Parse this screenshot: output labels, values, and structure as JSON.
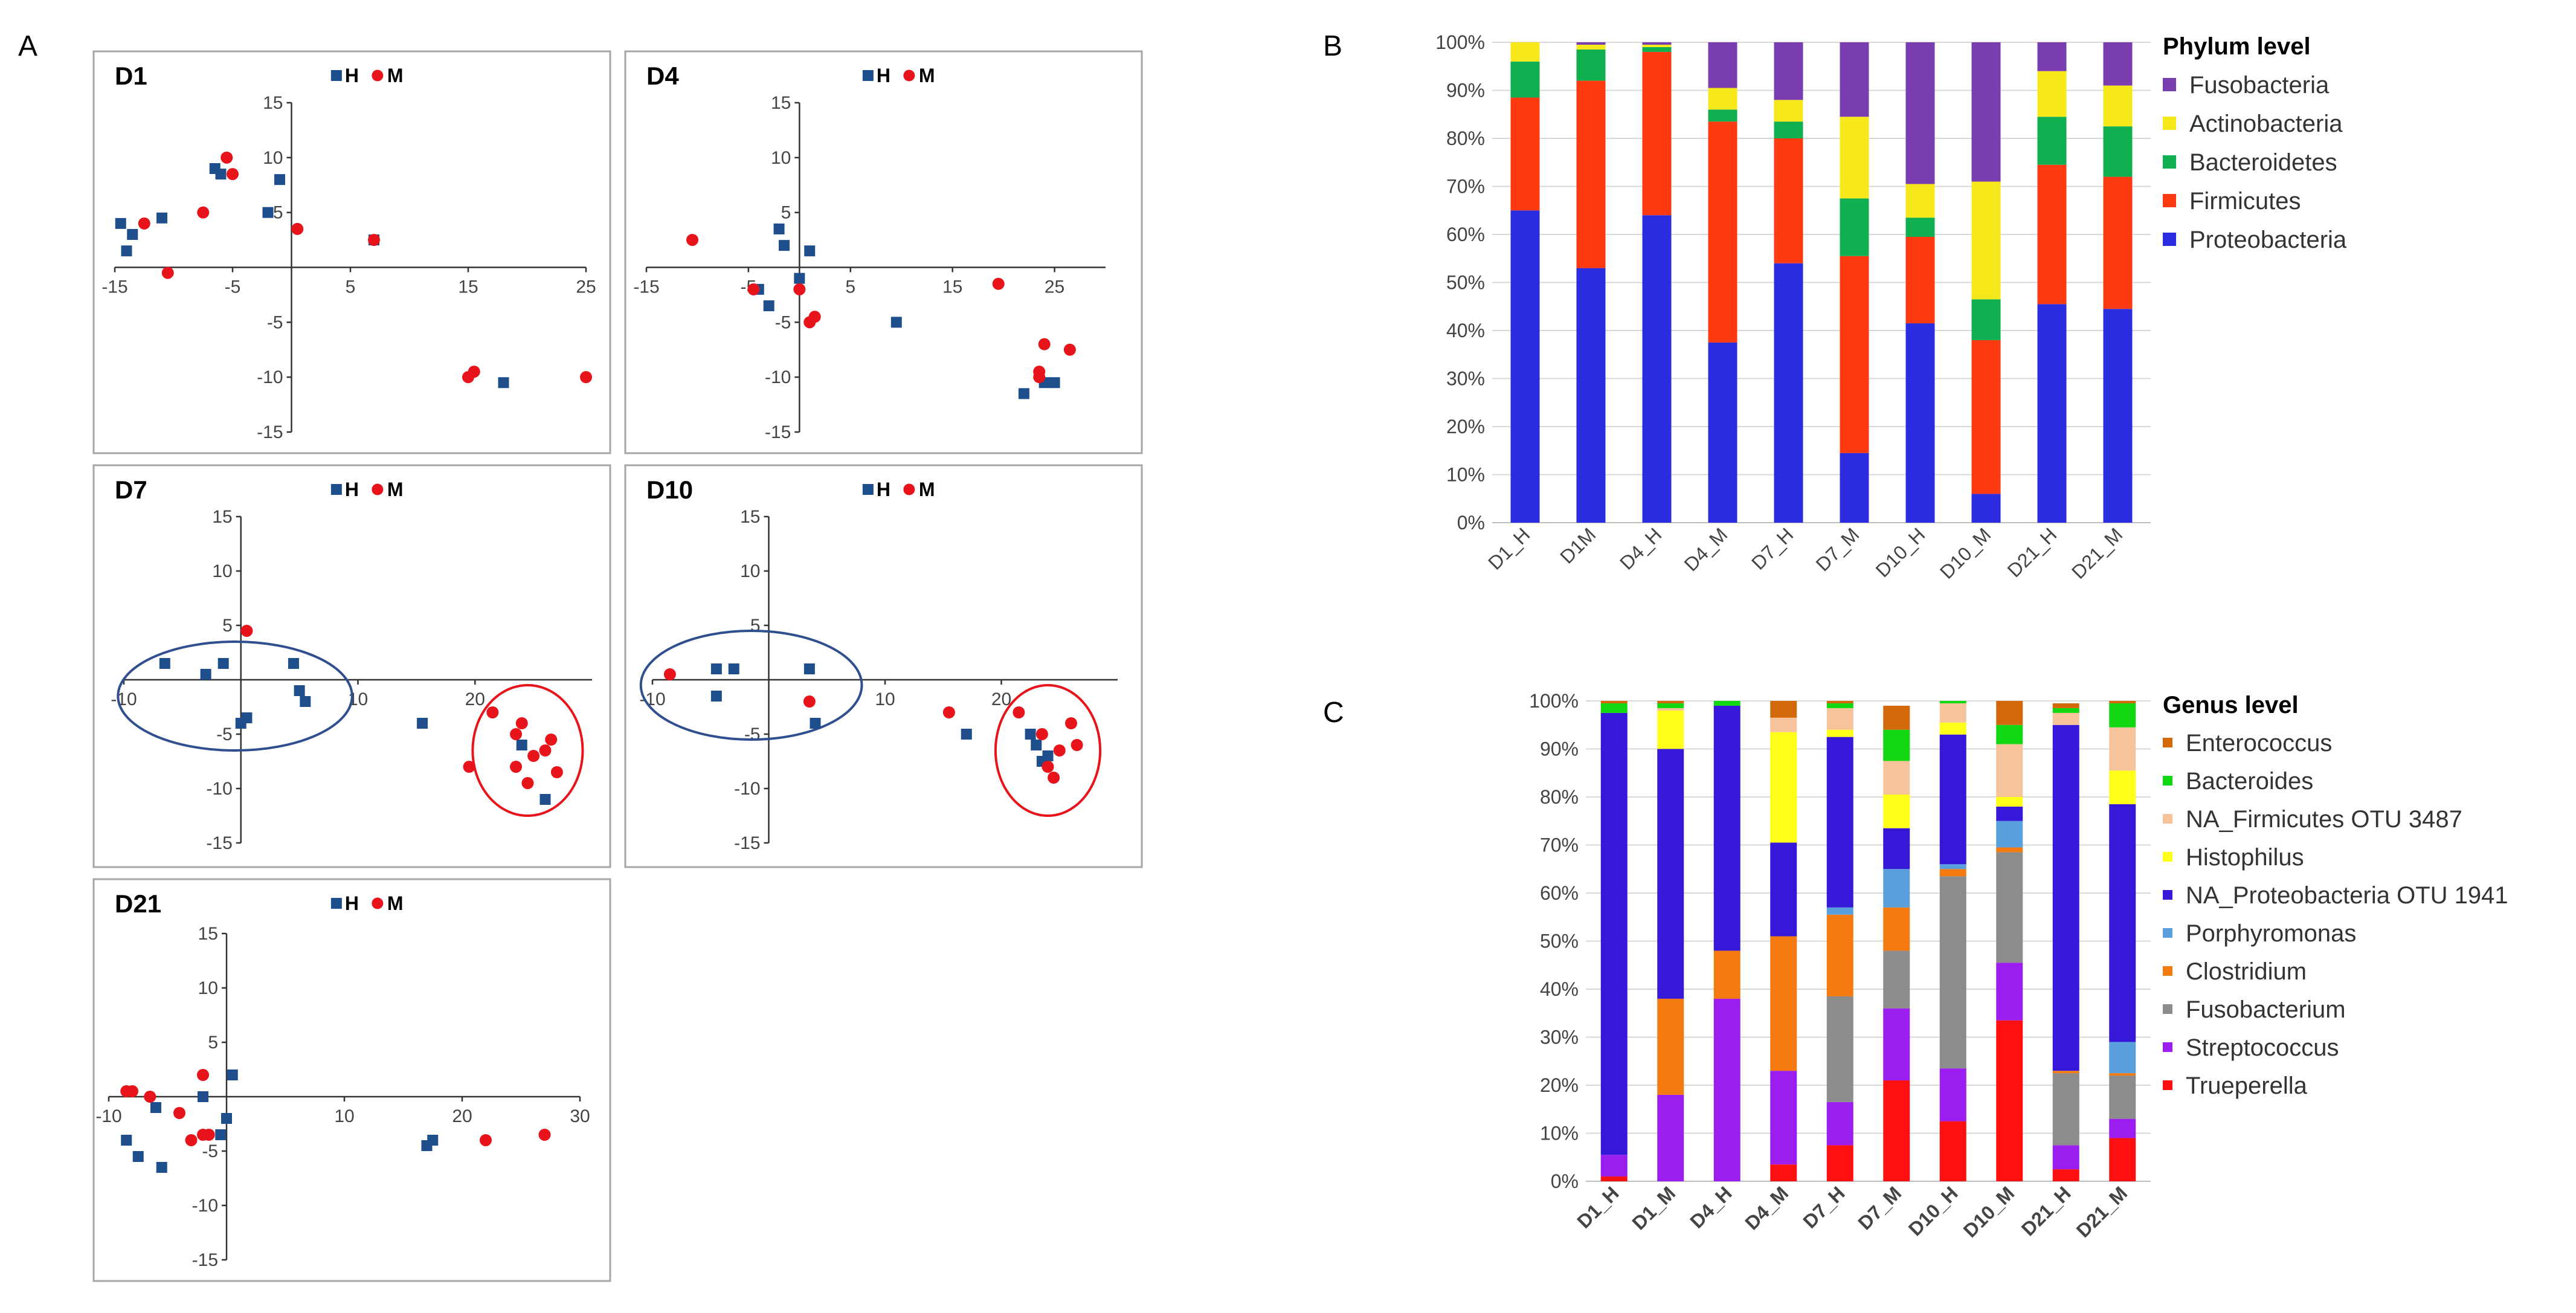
{
  "panel_labels": {
    "a": "A",
    "b": "B",
    "c": "C"
  },
  "colors": {
    "H": "#1f4e8c",
    "M": "#e8141b"
  },
  "chart_data": [
    {
      "type": "scatter",
      "id": "D1",
      "title": "D1",
      "legend": [
        "H",
        "M"
      ],
      "xlim": [
        -15,
        25
      ],
      "ylim": [
        -15,
        15
      ],
      "xticks": [
        -15,
        -5,
        5,
        15,
        25
      ],
      "yticks": [
        -15,
        -10,
        -5,
        5,
        10,
        15
      ],
      "series": [
        {
          "name": "H",
          "points": [
            [
              -14.5,
              4
            ],
            [
              -14,
              1.5
            ],
            [
              -13.5,
              3
            ],
            [
              -11,
              4.5
            ],
            [
              -6.5,
              9
            ],
            [
              -6,
              8.5
            ],
            [
              -2,
              5
            ],
            [
              -1,
              8
            ],
            [
              7,
              2.5
            ],
            [
              18,
              -10.5
            ]
          ]
        },
        {
          "name": "M",
          "points": [
            [
              -12.5,
              4
            ],
            [
              -10.5,
              -0.5
            ],
            [
              -7.5,
              5
            ],
            [
              -5.5,
              10
            ],
            [
              -5,
              8.5
            ],
            [
              0.5,
              3.5
            ],
            [
              7,
              2.5
            ],
            [
              15,
              -10
            ],
            [
              15.5,
              -9.5
            ],
            [
              25,
              -10
            ]
          ]
        }
      ],
      "ellipses": []
    },
    {
      "type": "scatter",
      "id": "D4",
      "title": "D4",
      "legend": [
        "H",
        "M"
      ],
      "xlim": [
        -15,
        30
      ],
      "ylim": [
        -15,
        15
      ],
      "xticks": [
        -15,
        -5,
        5,
        15,
        25
      ],
      "yticks": [
        -15,
        -10,
        -5,
        5,
        10,
        15
      ],
      "series": [
        {
          "name": "H",
          "points": [
            [
              -4,
              -2
            ],
            [
              -3,
              -3.5
            ],
            [
              -2,
              3.5
            ],
            [
              -1.5,
              2
            ],
            [
              0,
              -1
            ],
            [
              1,
              1.5
            ],
            [
              9.5,
              -5
            ],
            [
              22,
              -11.5
            ],
            [
              24,
              -10.5
            ],
            [
              25,
              -10.5
            ]
          ]
        },
        {
          "name": "M",
          "points": [
            [
              -10.5,
              2.5
            ],
            [
              -4.5,
              -2
            ],
            [
              0,
              -2
            ],
            [
              1,
              -5
            ],
            [
              1.5,
              -4.5
            ],
            [
              19.5,
              -1.5
            ],
            [
              23.5,
              -10
            ],
            [
              23.5,
              -9.5
            ],
            [
              24,
              -7
            ],
            [
              26.5,
              -7.5
            ]
          ]
        }
      ],
      "ellipses": []
    },
    {
      "type": "scatter",
      "id": "D7",
      "title": "D7",
      "legend": [
        "H",
        "M"
      ],
      "xlim": [
        -10,
        30
      ],
      "ylim": [
        -15,
        15
      ],
      "xticks": [
        -10,
        10,
        20
      ],
      "yticks": [
        -15,
        -10,
        -5,
        5,
        10,
        15
      ],
      "series": [
        {
          "name": "H",
          "points": [
            [
              -6.5,
              1.5
            ],
            [
              -3,
              0.5
            ],
            [
              -1.5,
              1.5
            ],
            [
              0,
              -4
            ],
            [
              0.5,
              -3.5
            ],
            [
              4.5,
              1.5
            ],
            [
              5,
              -1
            ],
            [
              5.5,
              -2
            ],
            [
              15.5,
              -4
            ],
            [
              24,
              -6
            ],
            [
              26,
              -11
            ]
          ]
        },
        {
          "name": "M",
          "points": [
            [
              0.5,
              4.5
            ],
            [
              19.5,
              -8
            ],
            [
              21.5,
              -3
            ],
            [
              23.5,
              -5
            ],
            [
              23.5,
              -8
            ],
            [
              24,
              -4
            ],
            [
              24.5,
              -9.5
            ],
            [
              25,
              -7
            ],
            [
              26,
              -6.5
            ],
            [
              26.5,
              -5.5
            ],
            [
              27,
              -8.5
            ]
          ]
        }
      ],
      "ellipses": [
        {
          "cx": -0.5,
          "cy": -1.5,
          "rx": 10,
          "ry": 5,
          "color": "#2f4f8f"
        },
        {
          "cx": 24.5,
          "cy": -6.5,
          "rx": 4.7,
          "ry": 6,
          "color": "#e8141b"
        }
      ]
    },
    {
      "type": "scatter",
      "id": "D10",
      "title": "D10",
      "legend": [
        "H",
        "M"
      ],
      "xlim": [
        -10,
        30
      ],
      "ylim": [
        -15,
        15
      ],
      "xticks": [
        -10,
        10,
        20
      ],
      "yticks": [
        -15,
        -10,
        -5,
        5,
        10,
        15
      ],
      "series": [
        {
          "name": "H",
          "points": [
            [
              -4.5,
              -1.5
            ],
            [
              -4.5,
              1
            ],
            [
              -3,
              1
            ],
            [
              3.5,
              1
            ],
            [
              4,
              -4
            ],
            [
              17,
              -5
            ],
            [
              22.5,
              -5
            ],
            [
              23,
              -6
            ],
            [
              23.5,
              -7.5
            ],
            [
              24,
              -7
            ]
          ]
        },
        {
          "name": "M",
          "points": [
            [
              -8.5,
              0.5
            ],
            [
              3.5,
              -2
            ],
            [
              15.5,
              -3
            ],
            [
              21.5,
              -3
            ],
            [
              23.5,
              -5
            ],
            [
              24,
              -8
            ],
            [
              24.5,
              -9
            ],
            [
              25,
              -6.5
            ],
            [
              26,
              -4
            ],
            [
              26.5,
              -6
            ]
          ]
        }
      ],
      "ellipses": [
        {
          "cx": -1.5,
          "cy": -0.5,
          "rx": 9.5,
          "ry": 5,
          "color": "#2f4f8f"
        },
        {
          "cx": 24,
          "cy": -6.5,
          "rx": 4.5,
          "ry": 6,
          "color": "#e8141b"
        }
      ]
    },
    {
      "type": "scatter",
      "id": "D21",
      "title": "D21",
      "legend": [
        "H",
        "M"
      ],
      "xlim": [
        -10,
        30
      ],
      "ylim": [
        -15,
        15
      ],
      "xticks": [
        -10,
        10,
        20,
        30
      ],
      "yticks": [
        -15,
        -10,
        -5,
        5,
        10,
        15
      ],
      "series": [
        {
          "name": "H",
          "points": [
            [
              -8.5,
              -4
            ],
            [
              -7.5,
              -5.5
            ],
            [
              -6,
              -1
            ],
            [
              -5.5,
              -6.5
            ],
            [
              -2,
              0
            ],
            [
              -0.5,
              -3.5
            ],
            [
              0,
              -2
            ],
            [
              0.5,
              2
            ],
            [
              17,
              -4.5
            ],
            [
              17.5,
              -4
            ]
          ]
        },
        {
          "name": "M",
          "points": [
            [
              -8.5,
              0.5
            ],
            [
              -8,
              0.5
            ],
            [
              -6.5,
              0
            ],
            [
              -4,
              -1.5
            ],
            [
              -3,
              -4
            ],
            [
              -2,
              2
            ],
            [
              -2,
              -3.5
            ],
            [
              -1.5,
              -3.5
            ],
            [
              22,
              -4
            ],
            [
              27,
              -3.5
            ]
          ]
        }
      ],
      "ellipses": []
    },
    {
      "type": "bar",
      "id": "phylum",
      "stacked": true,
      "percent": true,
      "legend_title": "Phylum level",
      "ylim": [
        0,
        100
      ],
      "yticks": [
        "0%",
        "10%",
        "20%",
        "30%",
        "40%",
        "50%",
        "60%",
        "70%",
        "80%",
        "90%",
        "100%"
      ],
      "categories": [
        "D1_H",
        "D1M",
        "D4_H",
        "D4_M",
        "D7_H",
        "D7_M",
        "D10_H",
        "D10_M",
        "D21_H",
        "D21_M"
      ],
      "series": [
        {
          "name": "Proteobacteria",
          "color": "#2b2be0",
          "values": [
            65,
            53,
            64,
            37.5,
            54,
            14.5,
            41.5,
            6,
            45.5,
            44.5
          ]
        },
        {
          "name": "Firmicutes",
          "color": "#ff3a10",
          "values": [
            23.5,
            39,
            34,
            46,
            26,
            41,
            18,
            32,
            29,
            27.5
          ]
        },
        {
          "name": "Bacteroidetes",
          "color": "#10b050",
          "values": [
            7.5,
            6.5,
            1,
            2.5,
            3.5,
            12,
            4,
            8.5,
            10,
            10.5
          ]
        },
        {
          "name": "Actinobacteria",
          "color": "#f7e81c",
          "values": [
            4,
            1,
            0.5,
            4.5,
            4.5,
            17,
            7,
            24.5,
            9.5,
            8.5
          ]
        },
        {
          "name": "Fusobacteria",
          "color": "#7a3db0",
          "values": [
            0,
            0.5,
            0.5,
            9.5,
            12,
            15.5,
            29.5,
            29,
            6,
            9
          ]
        }
      ]
    },
    {
      "type": "bar",
      "id": "genus",
      "stacked": true,
      "percent": true,
      "legend_title": "Genus level",
      "ylim": [
        0,
        100
      ],
      "yticks": [
        "0%",
        "10%",
        "20%",
        "30%",
        "40%",
        "50%",
        "60%",
        "70%",
        "80%",
        "90%",
        "100%"
      ],
      "categories": [
        "D1_H",
        "D1_M",
        "D4_H",
        "D4_M",
        "D7_H",
        "D7_M",
        "D10_H",
        "D10_M",
        "D21_H",
        "D21_M"
      ],
      "series": [
        {
          "name": "Trueperella",
          "color": "#ff1010",
          "values": [
            1,
            0,
            0,
            3.5,
            7.5,
            21,
            12.5,
            33.5,
            2.5,
            9
          ]
        },
        {
          "name": "Streptococcus",
          "color": "#9b1df0",
          "values": [
            4.5,
            18,
            38,
            19.5,
            9,
            15,
            11,
            12,
            5,
            4
          ]
        },
        {
          "name": "Fusobacterium",
          "color": "#8c8c8c",
          "values": [
            0,
            0,
            0,
            0,
            22,
            12,
            40,
            23,
            15,
            9
          ]
        },
        {
          "name": "Clostridium",
          "color": "#f57b10",
          "values": [
            0,
            20,
            10,
            28,
            17,
            9,
            1.5,
            1,
            0.5,
            0.5
          ]
        },
        {
          "name": "Porphyromonas",
          "color": "#5aa0dc",
          "values": [
            0,
            0,
            0,
            0,
            1.5,
            8,
            1,
            5.5,
            0,
            6.5
          ]
        },
        {
          "name": "NA_Proteobacteria OTU 1941",
          "color": "#3618d8",
          "values": [
            92,
            52,
            51,
            19.5,
            35.5,
            8.5,
            27,
            3,
            72,
            49.5
          ]
        },
        {
          "name": "Histophilus",
          "color": "#ffff19",
          "values": [
            0,
            8,
            0,
            23,
            1.5,
            7,
            2.5,
            2,
            0,
            7
          ]
        },
        {
          "name": "NA_Firmicutes OTU 3487",
          "color": "#f7c39a",
          "values": [
            0,
            0.5,
            0,
            3,
            4.5,
            7,
            4,
            11,
            2.5,
            9
          ]
        },
        {
          "name": "Bacteroides",
          "color": "#12d812",
          "values": [
            2,
            1,
            1,
            0,
            1,
            6.5,
            0.5,
            4,
            1,
            5
          ]
        },
        {
          "name": "Enterococcus",
          "color": "#d3680a",
          "values": [
            0.5,
            0.5,
            0,
            3.5,
            0.5,
            5,
            0,
            5,
            1,
            0.5
          ]
        }
      ]
    }
  ]
}
